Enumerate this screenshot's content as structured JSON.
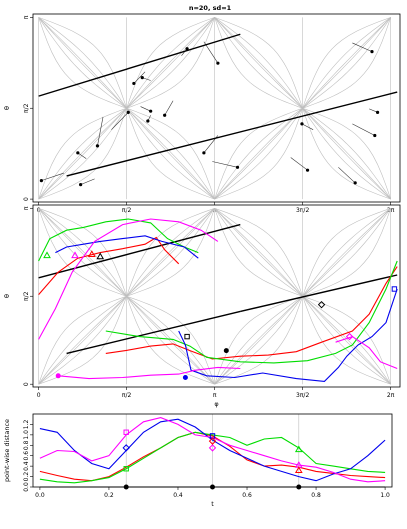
{
  "title": "n=20, sd=1",
  "colors": {
    "black": "#000000",
    "red": "#ff0000",
    "green": "#00dd00",
    "blue": "#0000ee",
    "magenta": "#ff00ff",
    "grid": "#bebebe"
  },
  "chart_data": [
    {
      "type": "scatter",
      "title": "n=20, sd=1",
      "xlabel": "",
      "ylabel": "θ",
      "xlim": [
        -0.1,
        6.45
      ],
      "ylim": [
        -0.05,
        3.2
      ],
      "x_ticks": [
        "0",
        "π/2",
        "π",
        "3π/2",
        "2π"
      ],
      "y_ticks": [
        "0",
        "π/2",
        "π"
      ],
      "fitted_lines": [
        {
          "x": [
            0.0,
            3.6
          ],
          "y": [
            1.78,
            2.85
          ]
        },
        {
          "x": [
            0.5,
            6.4
          ],
          "y": [
            0.4,
            1.85
          ]
        }
      ],
      "points": [
        {
          "x": 0.05,
          "y": 0.32,
          "fx": 0.45,
          "fy": 0.45
        },
        {
          "x": 0.7,
          "y": 0.8,
          "fx": 0.85,
          "fy": 0.7
        },
        {
          "x": 1.05,
          "y": 0.92,
          "fx": 1.15,
          "fy": 1.42
        },
        {
          "x": 1.85,
          "y": 2.1,
          "fx": 2.0,
          "fy": 2.05
        },
        {
          "x": 2.65,
          "y": 2.6,
          "fx": 2.55,
          "fy": 2.48
        },
        {
          "x": 3.2,
          "y": 2.35,
          "fx": 2.95,
          "fy": 2.72
        },
        {
          "x": 2.0,
          "y": 1.52,
          "fx": 1.82,
          "fy": 1.6
        },
        {
          "x": 1.95,
          "y": 1.35,
          "fx": 2.0,
          "fy": 1.45
        },
        {
          "x": 3.55,
          "y": 0.55,
          "fx": 3.1,
          "fy": 0.65
        },
        {
          "x": 5.95,
          "y": 2.55,
          "fx": 5.6,
          "fy": 2.7
        },
        {
          "x": 6.05,
          "y": 1.5,
          "fx": 5.9,
          "fy": 1.56
        },
        {
          "x": 6.0,
          "y": 1.1,
          "fx": 5.6,
          "fy": 1.3
        },
        {
          "x": 5.65,
          "y": 0.28,
          "fx": 5.35,
          "fy": 0.55
        },
        {
          "x": 4.8,
          "y": 0.5,
          "fx": 4.5,
          "fy": 0.72
        },
        {
          "x": 1.6,
          "y": 1.5,
          "fx": 1.3,
          "fy": 1.2
        },
        {
          "x": 0.75,
          "y": 0.25,
          "fx": 1.0,
          "fy": 0.35
        },
        {
          "x": 2.25,
          "y": 1.45,
          "fx": 2.4,
          "fy": 1.7
        },
        {
          "x": 1.7,
          "y": 2.0,
          "fx": 1.9,
          "fy": 2.2
        },
        {
          "x": 4.7,
          "y": 1.3,
          "fx": 4.9,
          "fy": 1.2
        },
        {
          "x": 2.95,
          "y": 0.8,
          "fx": 3.2,
          "fy": 1.1
        }
      ]
    },
    {
      "type": "line",
      "xlabel": "φ",
      "ylabel": "θ",
      "xlim": [
        -0.1,
        6.45
      ],
      "ylim": [
        -0.05,
        3.2
      ],
      "x_ticks": [
        "0",
        "π/2",
        "π",
        "3π/2",
        "2π"
      ],
      "y_ticks": [
        "0",
        "π/2",
        "π"
      ],
      "series": [
        {
          "color": "#000000",
          "x": [
            0.5,
            3.6
          ],
          "y": [
            0.55,
            1.3
          ]
        },
        {
          "color": "#000000",
          "x": [
            0.0,
            3.6
          ],
          "y": [
            1.9,
            2.85
          ]
        },
        {
          "color": "#000000",
          "x": [
            3.6,
            6.4
          ],
          "y": [
            1.3,
            1.95
          ]
        },
        {
          "color": "#ff0000",
          "x": [
            1.2,
            1.55,
            2.0,
            2.4,
            2.7,
            3.1,
            3.6,
            4.1,
            4.6,
            5.05,
            5.6,
            5.9,
            6.2,
            6.4
          ],
          "y": [
            0.55,
            0.6,
            0.68,
            0.72,
            0.6,
            0.45,
            0.5,
            0.52,
            0.58,
            0.75,
            0.95,
            1.25,
            1.8,
            2.1
          ]
        },
        {
          "color": "#ff0000",
          "x": [
            0.0,
            0.35,
            0.7,
            1.1,
            1.5,
            1.9,
            2.1,
            2.25,
            2.5
          ],
          "y": [
            1.6,
            2.0,
            2.25,
            2.35,
            2.42,
            2.5,
            2.62,
            2.4,
            2.15
          ]
        },
        {
          "color": "#00dd00",
          "x": [
            1.2,
            1.8,
            2.4,
            2.7,
            3.0,
            3.6,
            4.2,
            4.8,
            5.3,
            5.6,
            5.9,
            6.2,
            6.4
          ],
          "y": [
            0.95,
            0.85,
            0.8,
            0.68,
            0.48,
            0.4,
            0.38,
            0.42,
            0.55,
            0.7,
            1.1,
            1.7,
            2.2
          ]
        },
        {
          "color": "#00dd00",
          "x": [
            0.0,
            0.2,
            0.5,
            0.8,
            1.2,
            1.6,
            2.0,
            2.3,
            2.6,
            2.85
          ],
          "y": [
            2.2,
            2.6,
            2.75,
            2.8,
            2.9,
            2.95,
            2.88,
            2.6,
            2.45,
            2.35
          ]
        },
        {
          "color": "#0000ee",
          "x": [
            2.85,
            2.6,
            2.2,
            1.9,
            1.5,
            1.1,
            0.8,
            0.5,
            0.3
          ],
          "y": [
            2.25,
            2.45,
            2.55,
            2.65,
            2.6,
            2.55,
            2.5,
            2.45,
            2.35
          ]
        },
        {
          "color": "#0000ee",
          "x": [
            2.5,
            2.62,
            2.72,
            3.0,
            3.5,
            4.0,
            4.6,
            5.1,
            5.35,
            5.5,
            5.7,
            5.95,
            6.2,
            6.4
          ],
          "y": [
            0.95,
            0.7,
            0.25,
            0.15,
            0.12,
            0.2,
            0.1,
            0.05,
            0.3,
            0.5,
            0.7,
            0.85,
            1.1,
            1.7
          ]
        },
        {
          "color": "#ff00ff",
          "x": [
            0.35,
            0.9,
            1.5,
            2.0,
            2.5,
            2.8,
            3.2,
            3.6
          ],
          "y": [
            0.15,
            0.1,
            0.12,
            0.16,
            0.18,
            0.25,
            0.3,
            0.28
          ]
        },
        {
          "color": "#ff00ff",
          "x": [
            5.3,
            5.6,
            5.9,
            6.1,
            6.4
          ],
          "y": [
            0.75,
            0.85,
            0.65,
            0.4,
            0.28
          ]
        },
        {
          "color": "#ff00ff",
          "x": [
            0.0,
            0.3,
            0.6,
            1.0,
            1.5,
            2.0,
            2.5,
            2.9,
            3.2
          ],
          "y": [
            0.8,
            1.35,
            2.0,
            2.55,
            2.85,
            2.95,
            2.9,
            2.75,
            2.55
          ]
        }
      ],
      "markers": [
        {
          "shape": "circle",
          "color": "#000000",
          "x": 3.35,
          "y": 0.6
        },
        {
          "shape": "circle",
          "color": "#ff00ff",
          "x": 0.35,
          "y": 0.15
        },
        {
          "shape": "square",
          "color": "#000000",
          "x": 2.65,
          "y": 0.85
        },
        {
          "shape": "diamond",
          "color": "#000000",
          "x": 5.05,
          "y": 1.42
        },
        {
          "shape": "diamond",
          "color": "#ff00ff",
          "x": 5.55,
          "y": 0.85
        },
        {
          "shape": "triangle",
          "color": "#00dd00",
          "x": 0.15,
          "y": 2.3
        },
        {
          "shape": "triangle",
          "color": "#ff00ff",
          "x": 0.65,
          "y": 2.3
        },
        {
          "shape": "triangle",
          "color": "#ff0000",
          "x": 0.95,
          "y": 2.32
        },
        {
          "shape": "triangle",
          "color": "#000000",
          "x": 1.1,
          "y": 2.28
        },
        {
          "shape": "circle",
          "color": "#0000ee",
          "x": 2.62,
          "y": 0.12
        },
        {
          "shape": "square",
          "color": "#0000ee",
          "x": 6.35,
          "y": 1.7
        }
      ]
    },
    {
      "type": "line",
      "xlabel": "t",
      "ylabel": "point-wise distance",
      "xlim": [
        -0.02,
        1.02
      ],
      "ylim": [
        0.0,
        1.4
      ],
      "x_ticks": [
        "0.0",
        "0.2",
        "0.4",
        "0.6",
        "0.8",
        "1.0"
      ],
      "y_ticks": [
        "0.0",
        "0.2",
        "0.4",
        "0.6",
        "0.8",
        "1.0",
        "1.2"
      ],
      "series": [
        {
          "color": "#000000",
          "x": [
            0.0,
            1.0
          ],
          "y": [
            0.0,
            0.0
          ]
        },
        {
          "color": "#ff0000",
          "x": [
            0.0,
            0.05,
            0.1,
            0.15,
            0.2,
            0.25,
            0.3,
            0.35,
            0.4,
            0.45,
            0.5,
            0.55,
            0.6,
            0.65,
            0.7,
            0.75,
            0.8,
            0.85,
            0.9,
            0.95,
            1.0
          ],
          "y": [
            0.3,
            0.22,
            0.15,
            0.12,
            0.2,
            0.38,
            0.58,
            0.75,
            0.95,
            1.05,
            0.98,
            0.78,
            0.52,
            0.4,
            0.42,
            0.38,
            0.3,
            0.26,
            0.22,
            0.2,
            0.18
          ]
        },
        {
          "color": "#00dd00",
          "x": [
            0.0,
            0.05,
            0.1,
            0.15,
            0.2,
            0.25,
            0.3,
            0.35,
            0.4,
            0.45,
            0.5,
            0.55,
            0.6,
            0.65,
            0.7,
            0.75,
            0.8,
            0.85,
            0.9,
            0.95,
            1.0
          ],
          "y": [
            0.15,
            0.1,
            0.08,
            0.12,
            0.18,
            0.35,
            0.55,
            0.75,
            0.95,
            1.05,
            1.0,
            0.95,
            0.8,
            0.92,
            0.95,
            0.75,
            0.45,
            0.4,
            0.35,
            0.3,
            0.28
          ]
        },
        {
          "color": "#0000ee",
          "x": [
            0.0,
            0.05,
            0.1,
            0.15,
            0.2,
            0.25,
            0.3,
            0.35,
            0.4,
            0.45,
            0.5,
            0.55,
            0.6,
            0.65,
            0.7,
            0.75,
            0.8,
            0.85,
            0.9,
            0.95,
            1.0
          ],
          "y": [
            1.12,
            1.05,
            0.7,
            0.45,
            0.35,
            0.7,
            1.05,
            1.25,
            1.3,
            1.15,
            0.9,
            0.7,
            0.55,
            0.4,
            0.3,
            0.2,
            0.12,
            0.25,
            0.35,
            0.6,
            0.9
          ]
        },
        {
          "color": "#ff00ff",
          "x": [
            0.0,
            0.05,
            0.1,
            0.15,
            0.2,
            0.25,
            0.3,
            0.35,
            0.4,
            0.45,
            0.5,
            0.55,
            0.6,
            0.65,
            0.7,
            0.75,
            0.8,
            0.85,
            0.9,
            0.95,
            1.0
          ],
          "y": [
            0.55,
            0.7,
            0.68,
            0.5,
            0.6,
            1.0,
            1.25,
            1.33,
            1.2,
            1.0,
            0.95,
            0.8,
            0.7,
            0.6,
            0.5,
            0.42,
            0.38,
            0.28,
            0.15,
            0.1,
            0.12
          ]
        }
      ],
      "markers": [
        {
          "shape": "circle",
          "color": "#000000",
          "x": 0.25,
          "y": 0.0
        },
        {
          "shape": "circle",
          "color": "#000000",
          "x": 0.5,
          "y": 0.0
        },
        {
          "shape": "circle",
          "color": "#000000",
          "x": 0.75,
          "y": 0.0
        },
        {
          "shape": "square",
          "color": "#ff00ff",
          "x": 0.25,
          "y": 1.05
        },
        {
          "shape": "square",
          "color": "#00dd00",
          "x": 0.25,
          "y": 0.35
        },
        {
          "shape": "square",
          "color": "#0000ee",
          "x": 0.5,
          "y": 0.98
        },
        {
          "shape": "diamond",
          "color": "#0000ee",
          "x": 0.25,
          "y": 0.75
        },
        {
          "shape": "diamond",
          "color": "#ff00ff",
          "x": 0.5,
          "y": 0.75
        },
        {
          "shape": "diamond",
          "color": "#ff0000",
          "x": 0.5,
          "y": 0.88
        },
        {
          "shape": "triangle",
          "color": "#00dd00",
          "x": 0.75,
          "y": 0.72
        },
        {
          "shape": "triangle",
          "color": "#ff00ff",
          "x": 0.75,
          "y": 0.42
        },
        {
          "shape": "triangle",
          "color": "#ff0000",
          "x": 0.75,
          "y": 0.32
        }
      ]
    }
  ]
}
